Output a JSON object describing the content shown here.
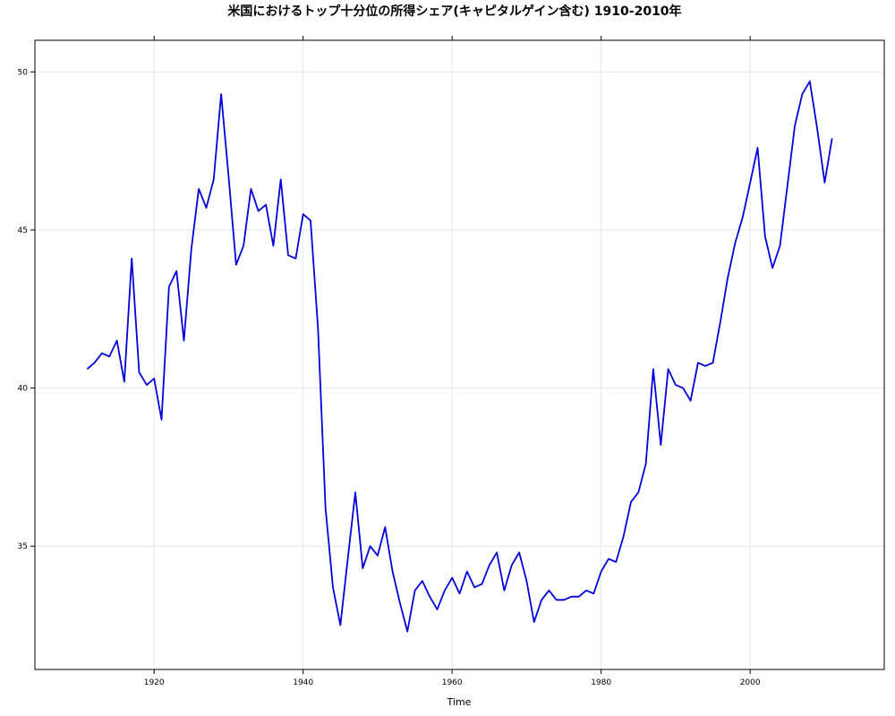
{
  "chart_data": {
    "type": "line",
    "title": "米国におけるトップ十分位の所得シェア(キャピタルゲイン含む) 1910-2010年",
    "xlabel": "Time",
    "ylabel": "",
    "xlim": [
      1904,
      2018
    ],
    "ylim": [
      31.1,
      51.0
    ],
    "x_ticks": [
      1920,
      1940,
      1960,
      1980,
      2000
    ],
    "y_ticks": [
      35,
      40,
      45,
      50
    ],
    "x_tick_labels": [
      "1920",
      "1940",
      "1960",
      "1980",
      "2000"
    ],
    "y_tick_labels": [
      "35",
      "40",
      "45",
      "50"
    ],
    "grid": true,
    "series": [
      {
        "color": "#0000dd",
        "x": [
          1911,
          1912,
          1913,
          1914,
          1915,
          1916,
          1917,
          1918,
          1919,
          1920,
          1921,
          1922,
          1923,
          1924,
          1925,
          1926,
          1927,
          1928,
          1929,
          1930,
          1931,
          1932,
          1933,
          1934,
          1935,
          1936,
          1937,
          1938,
          1939,
          1940,
          1941,
          1942,
          1943,
          1944,
          1945,
          1946,
          1947,
          1948,
          1949,
          1950,
          1951,
          1952,
          1953,
          1954,
          1955,
          1956,
          1957,
          1958,
          1959,
          1960,
          1961,
          1962,
          1963,
          1964,
          1965,
          1966,
          1967,
          1968,
          1969,
          1970,
          1971,
          1972,
          1973,
          1974,
          1975,
          1976,
          1977,
          1978,
          1979,
          1980,
          1981,
          1982,
          1983,
          1984,
          1985,
          1986,
          1987,
          1988,
          1989,
          1990,
          1991,
          1992,
          1993,
          1994,
          1995,
          1996,
          1997,
          1998,
          1999,
          2000,
          2001,
          2002,
          2003,
          2004,
          2005,
          2006,
          2007,
          2008,
          2009,
          2010,
          2011
        ],
        "values": [
          40.6,
          40.8,
          41.1,
          41.0,
          41.5,
          40.2,
          44.1,
          40.5,
          40.1,
          40.3,
          39.0,
          43.2,
          43.7,
          41.5,
          44.4,
          46.3,
          45.7,
          46.6,
          49.3,
          46.7,
          43.9,
          44.5,
          46.3,
          45.6,
          45.8,
          44.5,
          46.6,
          44.2,
          44.1,
          45.5,
          45.3,
          41.9,
          36.2,
          33.7,
          32.5,
          34.6,
          36.7,
          34.3,
          35.0,
          34.7,
          35.6,
          34.2,
          33.2,
          32.3,
          33.6,
          33.9,
          33.4,
          33.0,
          33.6,
          34.0,
          33.5,
          34.2,
          33.7,
          33.8,
          34.4,
          34.8,
          33.6,
          34.4,
          34.8,
          33.9,
          32.6,
          33.3,
          33.6,
          33.3,
          33.3,
          33.4,
          33.4,
          33.6,
          33.5,
          34.2,
          34.6,
          34.5,
          35.3,
          36.4,
          36.7,
          37.6,
          40.6,
          38.2,
          40.6,
          40.1,
          40.0,
          39.6,
          40.8,
          40.7,
          40.8,
          42.1,
          43.5,
          44.6,
          45.4,
          46.5,
          47.6,
          44.8,
          43.8,
          44.5,
          46.4,
          48.3,
          49.3,
          49.7,
          48.2,
          46.5,
          47.9
        ]
      }
    ]
  }
}
